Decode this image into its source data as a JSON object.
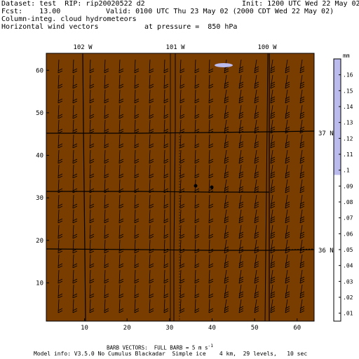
{
  "header": {
    "dataset": "Dataset: test  RIP: rip20020522 d2",
    "init": "Init: 1200 UTC Wed 22 May 02",
    "fcst": "Fcst:    13.00",
    "valid": "Valid: 0100 UTC Thu 23 May 02 (2000 CDT Wed 22 May 02)",
    "field1": "Column-integ. cloud hydrometeors",
    "field2": "Horizontal wind vectors",
    "pressure": "at pressure =  850 hPa"
  },
  "map": {
    "background_color": "#7a3d00",
    "longitude_labels": [
      "102 W",
      "101 W",
      "100 W"
    ],
    "latitude_labels": [
      "37 N",
      "36 N"
    ],
    "x_ticks": [
      "10",
      "20",
      "30",
      "40",
      "50",
      "60"
    ],
    "y_ticks": [
      "10",
      "20",
      "30",
      "40",
      "50",
      "60"
    ],
    "x_range": [
      1,
      64
    ],
    "y_range": [
      1,
      64
    ]
  },
  "colorbar": {
    "unit": "mm",
    "labels": [
      ".16",
      ".15",
      ".14",
      ".13",
      ".12",
      ".11",
      ".1",
      ".09",
      ".08",
      ".07",
      ".06",
      ".05",
      ".04",
      ".03",
      ".02",
      ".01"
    ],
    "low_color": "#ffffff",
    "high_color": "#bbbbee"
  },
  "footer": {
    "barb_note": "BARB VECTORS:  FULL BARB = 5 m s",
    "barb_sup": "-1",
    "model_info": "Model info: V3.5.0 No Cumulus Blackadar  Simple ice    4 km,  29 levels,   10 sec"
  }
}
